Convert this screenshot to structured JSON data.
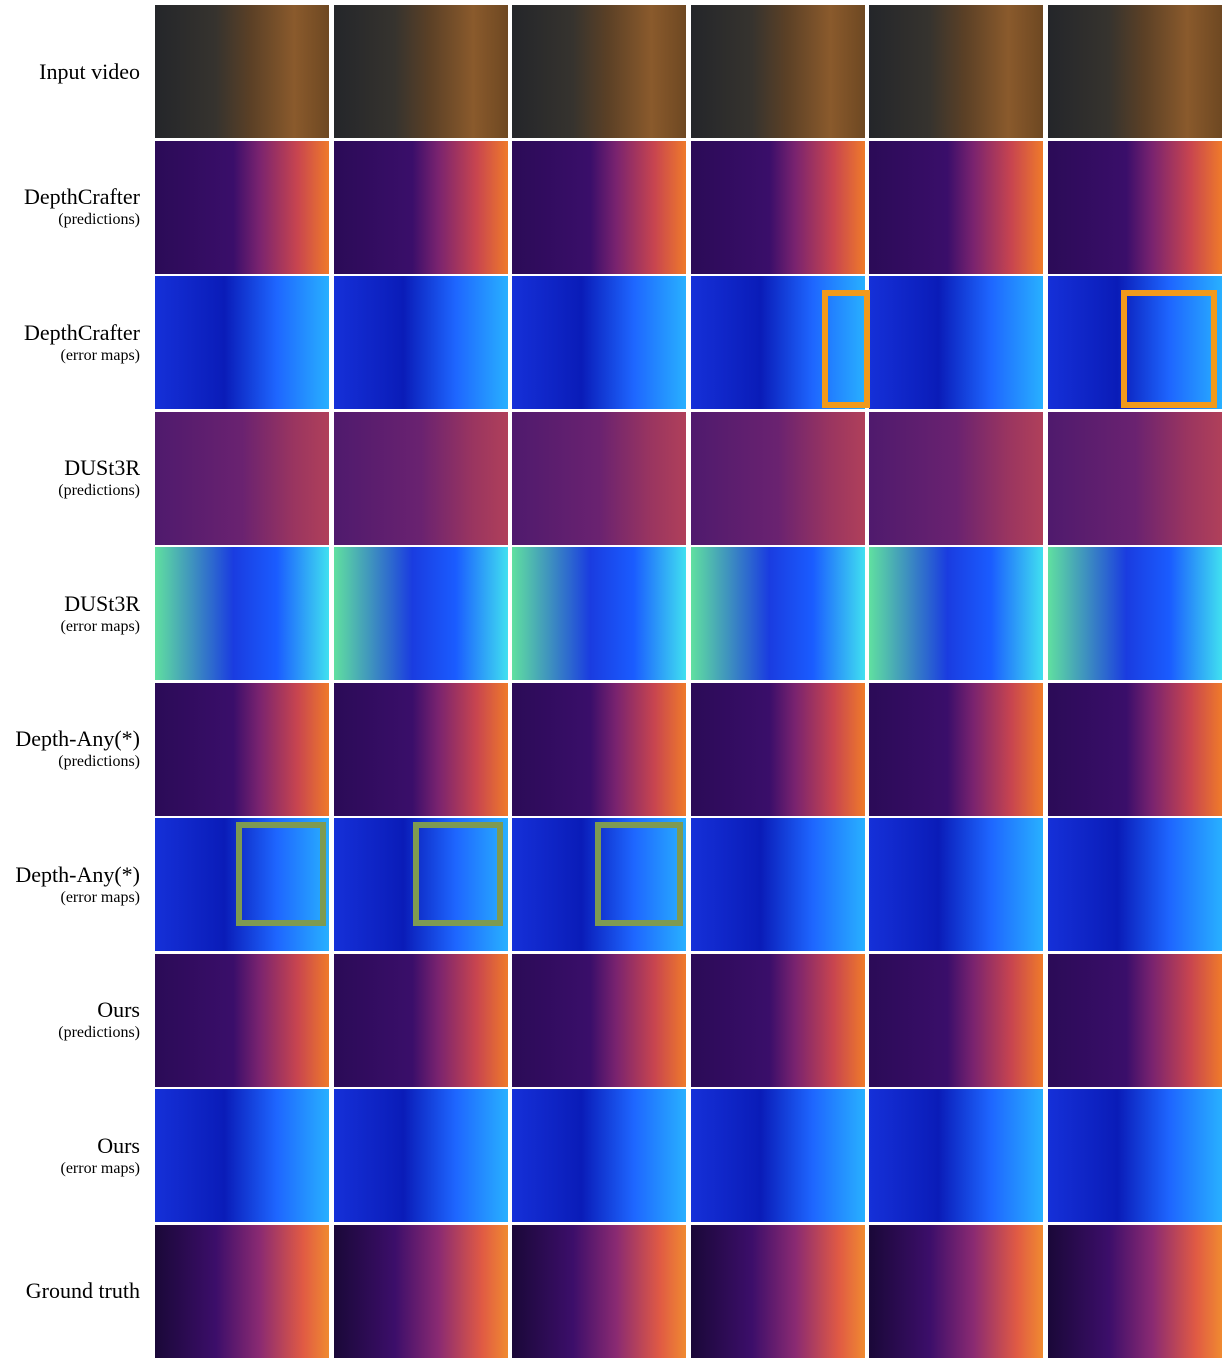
{
  "rows": [
    {
      "label": "Input video"
    },
    {
      "label": "DepthCrafter",
      "sublabel": "(predictions)"
    },
    {
      "label": "DepthCrafter",
      "sublabel": "(error maps)"
    },
    {
      "label": "DUSt3R",
      "sublabel": "(predictions)"
    },
    {
      "label": "DUSt3R",
      "sublabel": "(error maps)"
    },
    {
      "label": "Depth-Any(*)",
      "sublabel": "(predictions)"
    },
    {
      "label": "Depth-Any(*)",
      "sublabel": "(error maps)"
    },
    {
      "label": "Ours",
      "sublabel": "(predictions)"
    },
    {
      "label": "Ours",
      "sublabel": "(error maps)"
    },
    {
      "label": "Ground truth"
    }
  ]
}
